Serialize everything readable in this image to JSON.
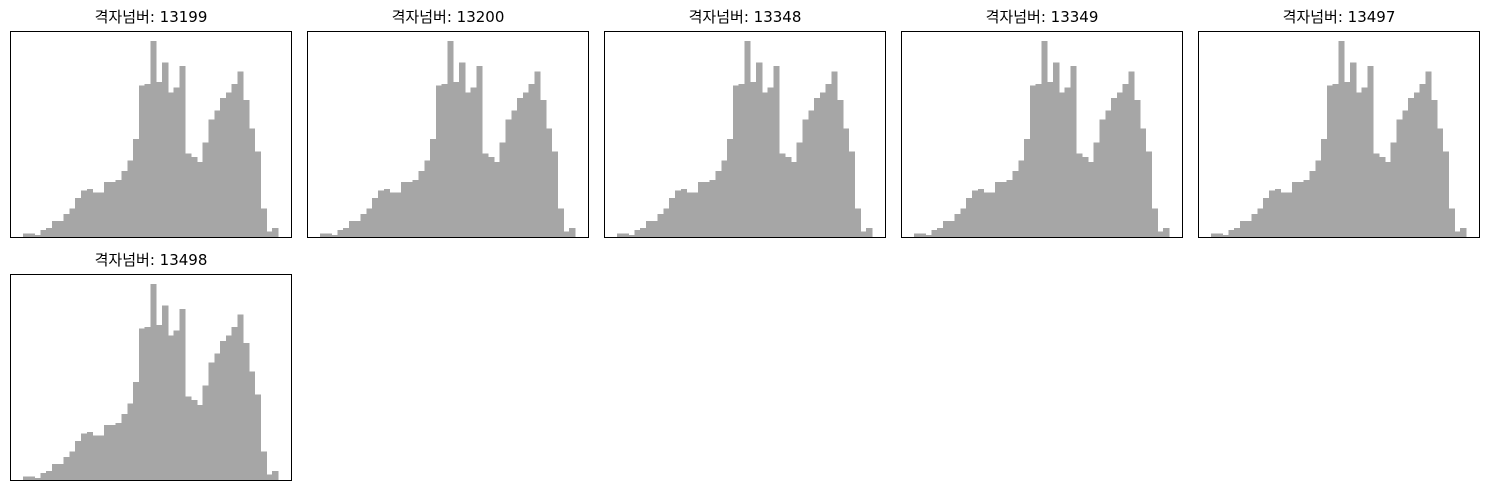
{
  "colors": {
    "bar": "#a6a6a6",
    "frame": "#000000",
    "background": "#ffffff"
  },
  "chart_data": [
    {
      "type": "bar",
      "title": "격자넘버: 13199",
      "xlabel": "",
      "ylabel": "",
      "grid": false,
      "ticks": false,
      "values": [
        2,
        2,
        1,
        4,
        5,
        9,
        9,
        13,
        16,
        22,
        26,
        27,
        25,
        25,
        31,
        31,
        32,
        37,
        43,
        55,
        85,
        86,
        110,
        87,
        98,
        81,
        84,
        96,
        47,
        45,
        42,
        53,
        66,
        71,
        78,
        81,
        86,
        93,
        77,
        61,
        48,
        16,
        3,
        5
      ]
    },
    {
      "type": "bar",
      "title": "격자넘버: 13200",
      "xlabel": "",
      "ylabel": "",
      "grid": false,
      "ticks": false,
      "values": [
        2,
        2,
        1,
        4,
        5,
        9,
        9,
        13,
        16,
        22,
        26,
        27,
        25,
        25,
        31,
        31,
        32,
        37,
        43,
        55,
        85,
        86,
        110,
        87,
        98,
        81,
        84,
        96,
        47,
        45,
        42,
        53,
        66,
        71,
        78,
        81,
        86,
        93,
        77,
        61,
        48,
        16,
        3,
        5
      ]
    },
    {
      "type": "bar",
      "title": "격자넘버: 13348",
      "xlabel": "",
      "ylabel": "",
      "grid": false,
      "ticks": false,
      "values": [
        2,
        2,
        1,
        4,
        5,
        9,
        9,
        13,
        16,
        22,
        26,
        27,
        25,
        25,
        31,
        31,
        32,
        37,
        43,
        55,
        85,
        86,
        110,
        87,
        98,
        81,
        84,
        96,
        47,
        45,
        42,
        53,
        66,
        71,
        78,
        81,
        86,
        93,
        77,
        61,
        48,
        16,
        3,
        5
      ]
    },
    {
      "type": "bar",
      "title": "격자넘버: 13349",
      "xlabel": "",
      "ylabel": "",
      "grid": false,
      "ticks": false,
      "values": [
        2,
        2,
        1,
        4,
        5,
        9,
        9,
        13,
        16,
        22,
        26,
        27,
        25,
        25,
        31,
        31,
        32,
        37,
        43,
        55,
        85,
        86,
        110,
        87,
        98,
        81,
        84,
        96,
        47,
        45,
        42,
        53,
        66,
        71,
        78,
        81,
        86,
        93,
        77,
        61,
        48,
        16,
        3,
        5
      ]
    },
    {
      "type": "bar",
      "title": "격자넘버: 13497",
      "xlabel": "",
      "ylabel": "",
      "grid": false,
      "ticks": false,
      "values": [
        2,
        2,
        1,
        4,
        5,
        9,
        9,
        13,
        16,
        22,
        26,
        27,
        25,
        25,
        31,
        31,
        32,
        37,
        43,
        55,
        85,
        86,
        110,
        87,
        98,
        81,
        84,
        96,
        47,
        45,
        42,
        53,
        66,
        71,
        78,
        81,
        86,
        93,
        77,
        61,
        48,
        16,
        3,
        5
      ]
    },
    {
      "type": "bar",
      "title": "격자넘버: 13498",
      "xlabel": "",
      "ylabel": "",
      "grid": false,
      "ticks": false,
      "values": [
        2,
        2,
        1,
        4,
        5,
        9,
        9,
        13,
        16,
        22,
        26,
        27,
        25,
        25,
        31,
        31,
        32,
        37,
        43,
        55,
        85,
        86,
        110,
        87,
        98,
        81,
        84,
        96,
        47,
        45,
        42,
        53,
        66,
        71,
        78,
        81,
        86,
        93,
        77,
        61,
        48,
        16,
        3,
        5
      ]
    }
  ]
}
